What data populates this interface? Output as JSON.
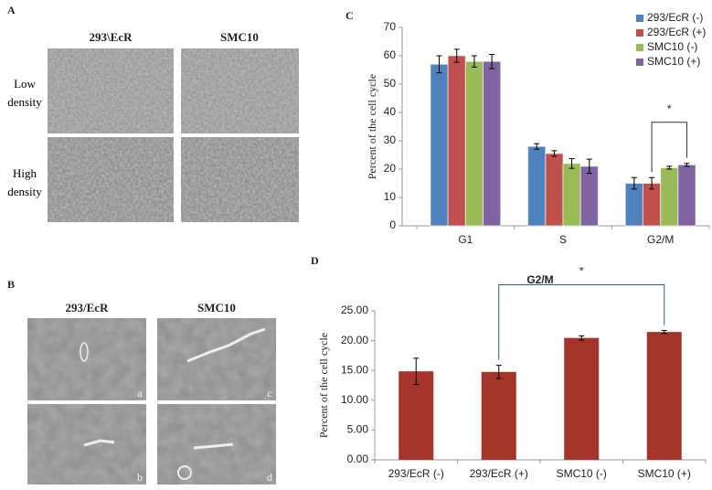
{
  "panel_labels": [
    "A",
    "B",
    "C",
    "D"
  ],
  "panel_a": {
    "columns": [
      "293\\EcR",
      "SMC10"
    ],
    "rows": [
      "Low density",
      "High density"
    ]
  },
  "panel_b": {
    "columns": [
      "293/EcR",
      "SMC10"
    ],
    "image_labels": [
      "a",
      "c",
      "b",
      "d"
    ]
  },
  "chart_data": [
    {
      "type": "bar",
      "ylabel": "Percent of the cell cycle",
      "categories": [
        "G1",
        "S",
        "G2/M"
      ],
      "series": [
        {
          "name": "293/EcR (-)",
          "color": "#4f81bd",
          "values": [
            57,
            28,
            15
          ],
          "errors": [
            3,
            1,
            2
          ]
        },
        {
          "name": "293/EcR (+)",
          "color": "#c0504d",
          "values": [
            60,
            25.5,
            15
          ],
          "errors": [
            2.3,
            1,
            2
          ]
        },
        {
          "name": "SMC10 (-)",
          "color": "#9bbb59",
          "values": [
            58,
            22,
            20.5
          ],
          "errors": [
            2,
            1.7,
            0.5
          ]
        },
        {
          "name": "SMC10 (+)",
          "color": "#8064a2",
          "values": [
            58,
            21,
            21.5
          ],
          "errors": [
            2.5,
            2.5,
            0.5
          ]
        }
      ],
      "ylim": [
        0,
        70
      ],
      "yticks": [
        0,
        10,
        20,
        30,
        40,
        50,
        60,
        70
      ],
      "grid": false,
      "legend": "top-right",
      "annotation": "*"
    },
    {
      "type": "bar",
      "title": "G2/M",
      "ylabel": "Percent of the cell cycle",
      "categories": [
        "293/EcR (-)",
        "293/EcR (+)",
        "SMC10 (-)",
        "SMC10 (+)"
      ],
      "values": [
        14.85,
        14.75,
        20.45,
        21.45
      ],
      "errors": [
        2.2,
        1.1,
        0.35,
        0.25
      ],
      "color": "#a5342a",
      "ylim": [
        0,
        25
      ],
      "yticks": [
        {
          "value": 0,
          "label": "0.00"
        },
        {
          "value": 5,
          "label": "5.00"
        },
        {
          "value": 10,
          "label": "10.00"
        },
        {
          "value": 15,
          "label": "15.00"
        },
        {
          "value": 20,
          "label": "20.00"
        },
        {
          "value": 25,
          "label": "25.00"
        }
      ],
      "grid": false,
      "annotation": "*"
    }
  ]
}
